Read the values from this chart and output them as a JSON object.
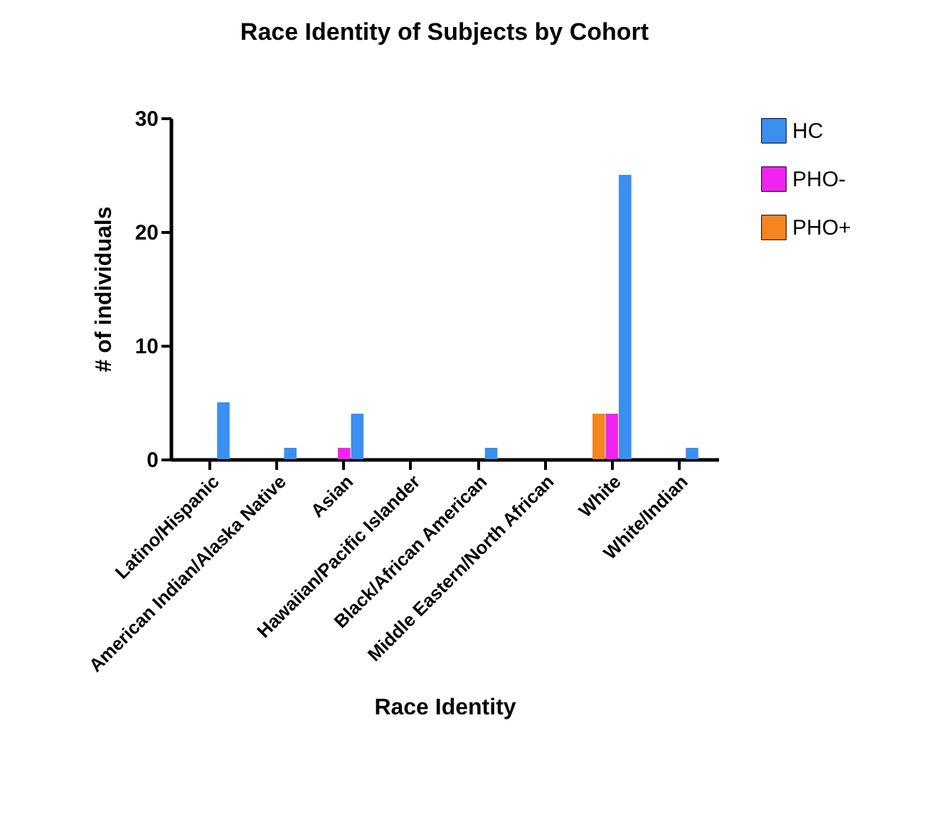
{
  "chart_data": {
    "type": "bar",
    "title": "Race Identity of Subjects by Cohort",
    "xlabel": "Race Identity",
    "ylabel": "# of individuals",
    "categories": [
      "Latino/Hispanic",
      "American Indian/Alaska Native",
      "Asian",
      "Hawaiian/Pacific Islander",
      "Black/African American",
      "Middle Eastern/North African",
      "White",
      "White/Indian"
    ],
    "series": [
      {
        "name": "PHO+",
        "color": "#f5851f",
        "values": [
          0,
          0,
          0,
          0,
          0,
          0,
          4,
          0
        ]
      },
      {
        "name": "PHO-",
        "color": "#f024f0",
        "values": [
          0,
          0,
          1,
          0,
          0,
          0,
          4,
          0
        ]
      },
      {
        "name": "HC",
        "color": "#3b8ff0",
        "values": [
          5,
          1,
          4,
          0,
          1,
          0,
          25,
          1
        ]
      }
    ],
    "ylim": [
      0,
      30
    ],
    "yticks": [
      0,
      10,
      20,
      30
    ],
    "grid": false,
    "legend": "top right"
  }
}
